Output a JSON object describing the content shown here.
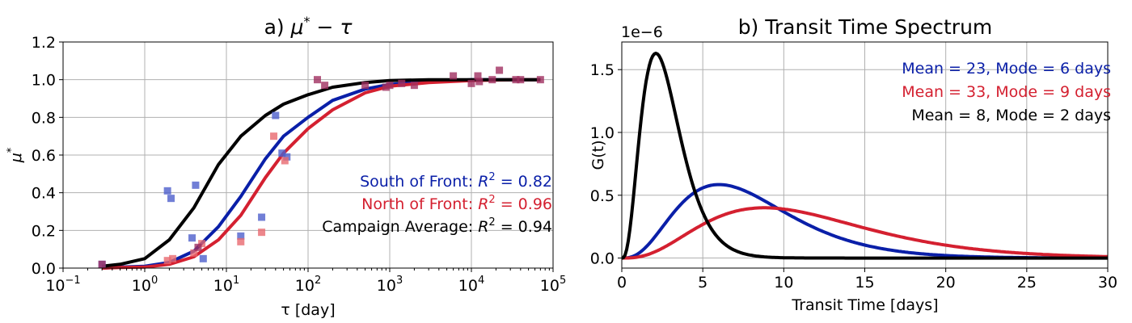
{
  "colors": {
    "south": "#0a1fa8",
    "north": "#d42030",
    "avg": "#000000",
    "grid": "#b0b0b0",
    "south_marker": "#4d5fcc",
    "north_marker": "#e8696f",
    "mixed_marker": "#a03060"
  },
  "chart_data": [
    {
      "type": "line+scatter",
      "title": "a) μ* − τ",
      "title_main": "a) ",
      "title_mu": "μ",
      "title_star": "*",
      "title_tail": " − τ",
      "xlabel": "τ [day]",
      "ylabel": "μ",
      "ylabel_sup": "*",
      "xscale": "log",
      "xlim": [
        0.1,
        100000
      ],
      "ylim": [
        0,
        1.2
      ],
      "grid": true,
      "xticks": [
        {
          "v": 0.1,
          "base": "10",
          "exp": "−1"
        },
        {
          "v": 1,
          "base": "10",
          "exp": "0"
        },
        {
          "v": 10,
          "base": "10",
          "exp": "1"
        },
        {
          "v": 100,
          "base": "10",
          "exp": "2"
        },
        {
          "v": 1000,
          "base": "10",
          "exp": "3"
        },
        {
          "v": 10000,
          "base": "10",
          "exp": "4"
        },
        {
          "v": 100000,
          "base": "10",
          "exp": "5"
        }
      ],
      "yticks": [
        "0.0",
        "0.2",
        "0.4",
        "0.6",
        "0.8",
        "1.0",
        "1.2"
      ],
      "annotations": [
        {
          "id": "south",
          "text": "South of Front: ",
          "r2": "R",
          "sup": "2",
          "val": " = 0.82",
          "color": "#0a1fa8"
        },
        {
          "id": "north",
          "text": "North of Front: ",
          "r2": "R",
          "sup": "2",
          "val": " = 0.96",
          "color": "#d42030"
        },
        {
          "id": "avg",
          "text": "Campaign Average: ",
          "r2": "R",
          "sup": "2",
          "val": " = 0.94",
          "color": "#000000"
        }
      ],
      "series": [
        {
          "name": "Campaign Average",
          "color": "#000000",
          "x": [
            0.3,
            0.5,
            1,
            2,
            4,
            8,
            15,
            30,
            50,
            100,
            200,
            500,
            1000,
            3000,
            10000,
            30000,
            70000
          ],
          "y": [
            0.01,
            0.02,
            0.05,
            0.15,
            0.32,
            0.55,
            0.7,
            0.81,
            0.87,
            0.92,
            0.96,
            0.985,
            0.995,
            1.0,
            1.0,
            1.0,
            1.0
          ]
        },
        {
          "name": "South of Front",
          "color": "#0a1fa8",
          "x": [
            0.3,
            0.5,
            1,
            2,
            4,
            8,
            15,
            30,
            50,
            100,
            200,
            500,
            1000,
            3000,
            10000,
            30000,
            70000
          ],
          "y": [
            0.0,
            0.005,
            0.01,
            0.03,
            0.09,
            0.22,
            0.38,
            0.58,
            0.7,
            0.8,
            0.89,
            0.95,
            0.975,
            0.99,
            1.0,
            1.0,
            1.0
          ]
        },
        {
          "name": "North of Front",
          "color": "#d42030",
          "x": [
            0.3,
            0.5,
            1,
            2,
            4,
            8,
            15,
            30,
            50,
            100,
            200,
            500,
            1000,
            3000,
            10000,
            30000,
            70000
          ],
          "y": [
            0.0,
            0.003,
            0.005,
            0.02,
            0.06,
            0.15,
            0.28,
            0.48,
            0.61,
            0.74,
            0.84,
            0.93,
            0.965,
            0.985,
            0.995,
            1.0,
            1.0
          ]
        }
      ],
      "scatter": [
        {
          "group": "south",
          "x": [
            0.3,
            1.9,
            2.1,
            3.8,
            4.2,
            5.2,
            15,
            27,
            40,
            48,
            55
          ],
          "y": [
            0.02,
            0.41,
            0.37,
            0.16,
            0.44,
            0.05,
            0.17,
            0.27,
            0.81,
            0.61,
            0.59
          ]
        },
        {
          "group": "north",
          "x": [
            1.9,
            2.2,
            4.0,
            5.0,
            15,
            27,
            38,
            52
          ],
          "y": [
            0.04,
            0.05,
            0.08,
            0.13,
            0.14,
            0.19,
            0.7,
            0.57
          ]
        },
        {
          "group": "mixed",
          "x": [
            0.3,
            4.5,
            130,
            160,
            500,
            900,
            1000,
            1400,
            2000,
            6000,
            10000,
            12000,
            12500,
            18000,
            22000,
            35000,
            40000,
            70000
          ],
          "y": [
            0.02,
            0.11,
            1.0,
            0.97,
            0.97,
            0.96,
            0.97,
            0.98,
            0.97,
            1.02,
            0.98,
            1.02,
            0.99,
            1.0,
            1.05,
            1.0,
            1.0,
            1.0
          ]
        }
      ]
    },
    {
      "type": "line",
      "title": "b) Transit Time Spectrum",
      "xlabel": "Transit Time [days]",
      "ylabel": "G(t)",
      "offset_label": "1e−6",
      "xlim": [
        0,
        30
      ],
      "ylim": [
        -0.08,
        1.72
      ],
      "grid": true,
      "xticks": [
        "0",
        "5",
        "10",
        "15",
        "20",
        "25",
        "30"
      ],
      "yticks": [
        "0.0",
        "0.5",
        "1.0",
        "1.5"
      ],
      "legend": [
        {
          "text": "Mean = 23, Mode = 6 days",
          "color": "#0a1fa8"
        },
        {
          "text": "Mean = 33, Mode = 9 days",
          "color": "#d42030"
        },
        {
          "text": "Mean = 8, Mode = 2 days",
          "color": "#000000"
        }
      ],
      "series": [
        {
          "name": "Mean 8, Mode 2",
          "color": "#000000",
          "gamma_shape": 1.33,
          "mode": 2.1,
          "peak": 1.63
        },
        {
          "name": "Mean 23, Mode 6",
          "color": "#0a1fa8",
          "gamma_shape": 1.35,
          "mode": 6.0,
          "peak": 0.585
        },
        {
          "name": "Mean 33, Mode 9",
          "color": "#d42030",
          "gamma_shape": 1.37,
          "mode": 8.8,
          "peak": 0.4
        }
      ]
    }
  ]
}
